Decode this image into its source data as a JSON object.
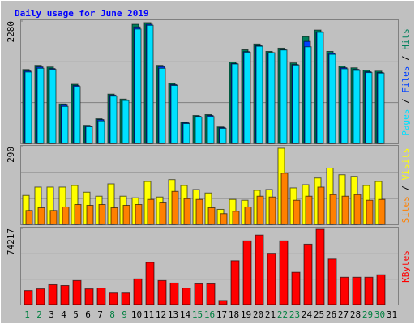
{
  "title": "Daily usage for June 2019",
  "separator": " / ",
  "chart_data": [
    {
      "type": "bar",
      "ylim": [
        0,
        2280
      ],
      "yticks": [
        2280
      ],
      "series": [
        {
          "name": "Hits",
          "color": "#00805c",
          "values": [
            1377,
            1454,
            1423,
            735,
            1102,
            337,
            459,
            918,
            826,
            2219,
            2250,
            1454,
            1117,
            398,
            520,
            536,
            306,
            1515,
            1744,
            1852,
            1714,
            1775,
            1500,
            1990,
            2112,
            1714,
            1438,
            1408,
            1362,
            1347,
            null
          ]
        },
        {
          "name": "Files",
          "color": "#0040ff",
          "values": [
            1350,
            1425,
            1395,
            715,
            1080,
            325,
            445,
            900,
            810,
            2170,
            2220,
            1430,
            1095,
            385,
            505,
            520,
            295,
            1490,
            1710,
            1820,
            1690,
            1745,
            1470,
            1900,
            2080,
            1680,
            1410,
            1380,
            1335,
            1320,
            null
          ]
        },
        {
          "name": "Pages",
          "color": "#00e0ff",
          "values": [
            1330,
            1400,
            1380,
            690,
            1060,
            310,
            420,
            880,
            800,
            2130,
            2200,
            1400,
            1080,
            370,
            490,
            500,
            280,
            1480,
            1700,
            1810,
            1690,
            1740,
            1460,
            1800,
            2070,
            1660,
            1390,
            1360,
            1320,
            1310,
            null
          ]
        }
      ]
    },
    {
      "type": "bar",
      "ylim": [
        0,
        290
      ],
      "yticks": [
        290
      ],
      "series": [
        {
          "name": "Visits",
          "color": "#ffff00",
          "values": [
            108,
            139,
            139,
            139,
            145,
            120,
            105,
            151,
            105,
            99,
            160,
            102,
            167,
            145,
            130,
            117,
            56,
            93,
            90,
            127,
            130,
            284,
            136,
            148,
            173,
            210,
            185,
            179,
            145,
            160,
            null
          ]
        },
        {
          "name": "Sites",
          "color": "#ff8000",
          "values": [
            52,
            62,
            52,
            65,
            74,
            71,
            74,
            62,
            71,
            74,
            93,
            83,
            123,
            96,
            93,
            62,
            40,
            49,
            65,
            105,
            102,
            191,
            90,
            105,
            139,
            111,
            105,
            111,
            90,
            93,
            null
          ]
        }
      ]
    },
    {
      "type": "bar",
      "ylim": [
        0,
        74217
      ],
      "yticks": [
        74217
      ],
      "categories": [
        "1",
        "2",
        "3",
        "4",
        "5",
        "6",
        "7",
        "8",
        "9",
        "10",
        "11",
        "12",
        "13",
        "14",
        "15",
        "16",
        "17",
        "18",
        "19",
        "20",
        "21",
        "22",
        "23",
        "24",
        "25",
        "26",
        "27",
        "28",
        "29",
        "30",
        "31"
      ],
      "category_colors": [
        "#008040",
        "#008040",
        "#000000",
        "#000000",
        "#000000",
        "#000000",
        "#000000",
        "#008040",
        "#008040",
        "#000000",
        "#000000",
        "#000000",
        "#000000",
        "#000000",
        "#008040",
        "#008040",
        "#000000",
        "#000000",
        "#000000",
        "#000000",
        "#000000",
        "#008040",
        "#008040",
        "#000000",
        "#000000",
        "#000000",
        "#000000",
        "#000000",
        "#008040",
        "#008040",
        "#000000"
      ],
      "series": [
        {
          "name": "KBytes",
          "color": "#ff0000",
          "values": [
            13714,
            15327,
            19361,
            18554,
            23394,
            15327,
            16134,
            11294,
            11294,
            25007,
            41141,
            23394,
            20974,
            16134,
            20168,
            20168,
            4033,
            42755,
            62115,
            67762,
            50015,
            62115,
            31461,
            58888,
            73410,
            44368,
            26621,
            26621,
            26621,
            29041,
            null
          ]
        }
      ]
    }
  ]
}
